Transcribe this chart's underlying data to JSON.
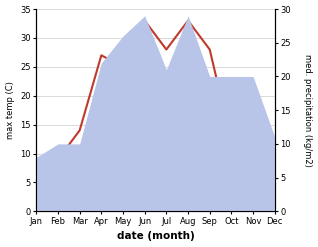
{
  "months": [
    "Jan",
    "Feb",
    "Mar",
    "Apr",
    "May",
    "Jun",
    "Jul",
    "Aug",
    "Sep",
    "Oct",
    "Nov",
    "Dec"
  ],
  "temperature": [
    4,
    9,
    14,
    27,
    25,
    33,
    28,
    33,
    28,
    12,
    7,
    4
  ],
  "precipitation": [
    8,
    10,
    10,
    22,
    26,
    29,
    21,
    29,
    20,
    20,
    20,
    11
  ],
  "temp_color": "#c0392b",
  "precip_fill_color": "#b8c4e8",
  "left_ylim": [
    0,
    35
  ],
  "right_ylim": [
    0,
    30
  ],
  "left_yticks": [
    0,
    5,
    10,
    15,
    20,
    25,
    30,
    35
  ],
  "right_yticks": [
    0,
    5,
    10,
    15,
    20,
    25,
    30
  ],
  "xlabel": "date (month)",
  "ylabel_left": "max temp (C)",
  "ylabel_right": "med. precipitation (kg/m2)",
  "background_color": "#ffffff",
  "fig_width": 3.18,
  "fig_height": 2.47,
  "dpi": 100
}
